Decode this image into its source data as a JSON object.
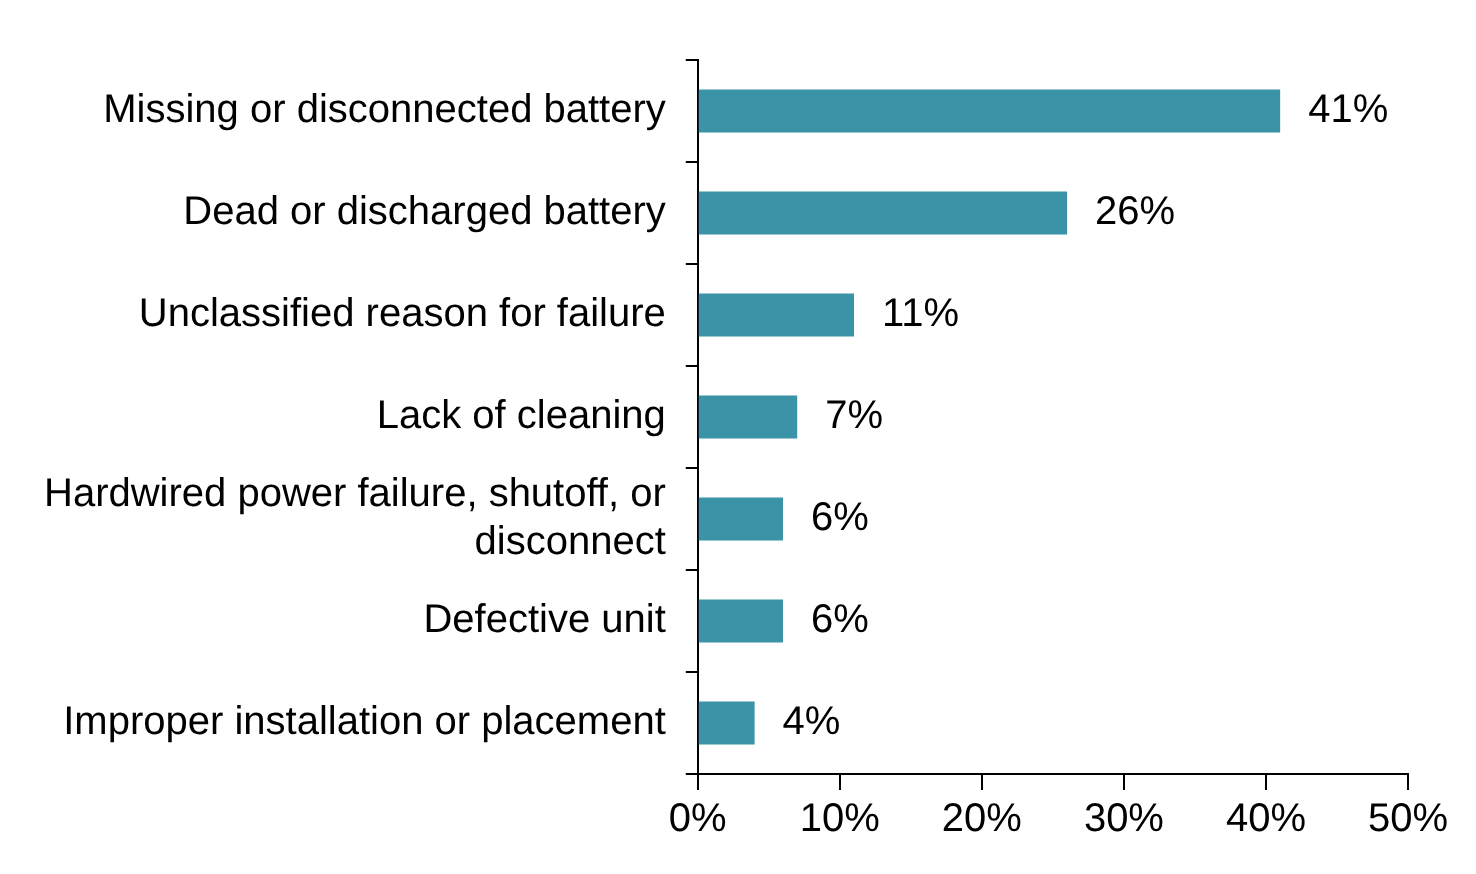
{
  "chart_data": {
    "type": "bar",
    "orientation": "horizontal",
    "categories": [
      "Missing or disconnected battery",
      "Dead or discharged battery",
      "Unclassified reason for failure",
      "Lack of cleaning",
      "Hardwired power failure, shutoff, or disconnect",
      "Defective unit",
      "Improper installation or placement"
    ],
    "values": [
      41,
      26,
      11,
      7,
      6,
      6,
      4
    ],
    "value_labels": [
      "41%",
      "26%",
      "11%",
      "7%",
      "6%",
      "6%",
      "4%"
    ],
    "color": "#3a93a6",
    "xlim": [
      0,
      50
    ],
    "xticks": [
      {
        "value": 0,
        "label": "0%"
      },
      {
        "value": 10,
        "label": "10%"
      },
      {
        "value": 20,
        "label": "20%"
      },
      {
        "value": 30,
        "label": "30%"
      },
      {
        "value": 40,
        "label": "40%"
      },
      {
        "value": 50,
        "label": "50%"
      }
    ],
    "grid": false,
    "legend": false
  }
}
